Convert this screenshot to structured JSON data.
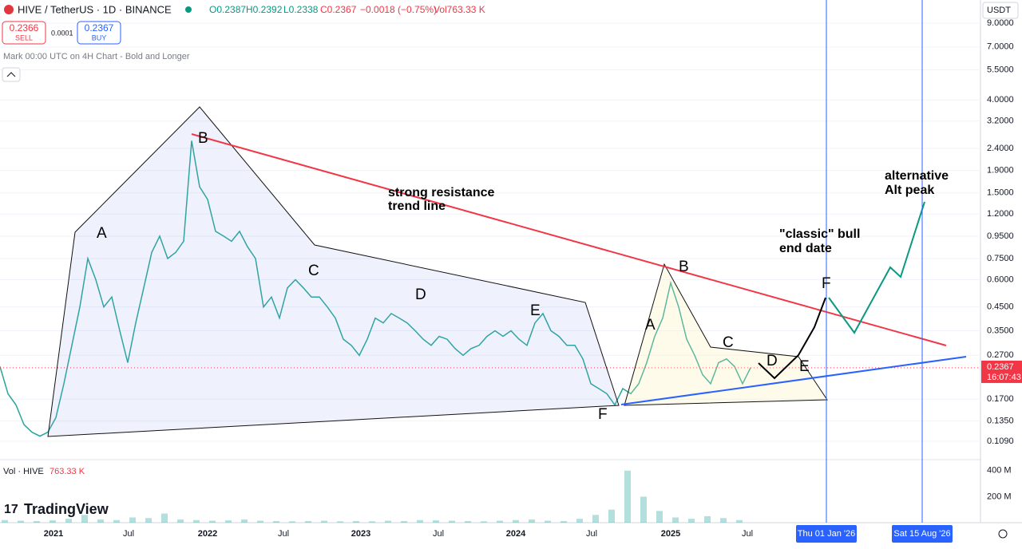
{
  "header": {
    "symbol": "HIVE / TetherUS · 1D · BINANCE",
    "open": "O0.2387",
    "high": "H0.2392",
    "low": "L0.2338",
    "close": "C0.2367",
    "change": "−0.0018 (−0.75%)",
    "volume": "Vol763.33 K",
    "sell_price": "0.2366",
    "sell": "SELL",
    "spread": "0.0001",
    "buy_price": "0.2367",
    "buy": "BUY",
    "note": "Mark 00:00 UTC on 4H Chart - Bold and Longer"
  },
  "currency": "USDT",
  "last_price": 0.2367,
  "countdown": "16:07:43",
  "brand": "TradingView",
  "volume_label": "Vol · HIVE",
  "volume_value": "763.33 K",
  "time_labels": [
    "2021",
    "Jul",
    "2022",
    "Jul",
    "2023",
    "Jul",
    "2024",
    "Jul",
    "2025",
    "Jul",
    "Thu 01 Jan '26",
    "Sat 15 Aug '26"
  ],
  "annotations": {
    "left_b": "B",
    "left_a": "A",
    "left_c": "C",
    "left_d": "D",
    "left_e": "E",
    "left_f": "F",
    "resistance_1": "strong resistance",
    "resistance_2": "trend line",
    "right_b": "B",
    "right_a": "A",
    "right_c": "C",
    "right_d": "D",
    "right_e": "E",
    "right_f": "F",
    "classic_1": "\"classic\" bull",
    "classic_2": "end date",
    "alt_1": "alternative",
    "alt_2": "Alt peak"
  },
  "chart_data": {
    "type": "line",
    "log_scale": true,
    "color": "#26a69a",
    "ylim": [
      0.0898,
      11.49
    ],
    "yticks": [
      {
        "value": 9,
        "label": "9.0000"
      },
      {
        "value": 7,
        "label": "7.0000"
      },
      {
        "value": 5.5,
        "label": "5.5000"
      },
      {
        "value": 4,
        "label": "4.0000"
      },
      {
        "value": 3.2,
        "label": "3.2000"
      },
      {
        "value": 2.4,
        "label": "2.4000"
      },
      {
        "value": 1.9,
        "label": "1.9000"
      },
      {
        "value": 1.5,
        "label": "1.5000"
      },
      {
        "value": 1.2,
        "label": "1.2000"
      },
      {
        "value": 0.95,
        "label": "0.9500"
      },
      {
        "value": 0.75,
        "label": "0.7500"
      },
      {
        "value": 0.6,
        "label": "0.6000"
      },
      {
        "value": 0.45,
        "label": "0.4500"
      },
      {
        "value": 0.35,
        "label": "0.3500"
      },
      {
        "value": 0.27,
        "label": "0.2700"
      },
      {
        "value": 0.17,
        "label": "0.1700"
      },
      {
        "value": 0.135,
        "label": "0.1350"
      },
      {
        "value": 0.109,
        "label": "0.1090"
      }
    ],
    "values": [
      0.24,
      0.18,
      0.16,
      0.13,
      0.12,
      0.115,
      0.12,
      0.14,
      0.2,
      0.3,
      0.45,
      0.75,
      0.6,
      0.45,
      0.5,
      0.35,
      0.25,
      0.38,
      0.55,
      0.8,
      0.95,
      0.75,
      0.8,
      0.9,
      2.6,
      1.6,
      1.4,
      1.0,
      0.95,
      0.9,
      1.0,
      0.85,
      0.75,
      0.45,
      0.5,
      0.4,
      0.55,
      0.6,
      0.55,
      0.5,
      0.5,
      0.45,
      0.4,
      0.32,
      0.3,
      0.27,
      0.32,
      0.4,
      0.38,
      0.42,
      0.4,
      0.38,
      0.35,
      0.32,
      0.3,
      0.33,
      0.32,
      0.29,
      0.27,
      0.29,
      0.3,
      0.33,
      0.35,
      0.33,
      0.35,
      0.32,
      0.3,
      0.38,
      0.42,
      0.35,
      0.33,
      0.3,
      0.3,
      0.26,
      0.2,
      0.19,
      0.18,
      0.16,
      0.19,
      0.18,
      0.2,
      0.25,
      0.33,
      0.4,
      0.58,
      0.45,
      0.32,
      0.27,
      0.22,
      0.2,
      0.25,
      0.26,
      0.24,
      0.2,
      0.2367
    ],
    "volume": {
      "color": "#26a69a",
      "ylim": [
        0,
        460
      ],
      "yticks": [
        {
          "value": 400,
          "label": "400 M"
        },
        {
          "value": 200,
          "label": "200 M"
        }
      ],
      "values": [
        20,
        15,
        12,
        18,
        30,
        60,
        25,
        20,
        40,
        35,
        70,
        25,
        20,
        15,
        18,
        25,
        15,
        12,
        10,
        12,
        15,
        10,
        12,
        10,
        15,
        12,
        20,
        18,
        15,
        12,
        10,
        15,
        20,
        25,
        15,
        12,
        30,
        60,
        100,
        400,
        200,
        90,
        40,
        30,
        50,
        35,
        20
      ]
    }
  }
}
